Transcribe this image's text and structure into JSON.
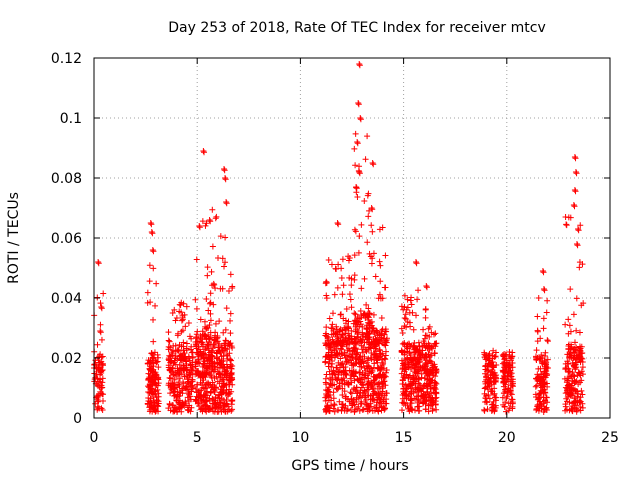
{
  "chart_data": {
    "type": "scatter",
    "title": "Day 253 of 2018, Rate Of TEC Index for receiver mtcv",
    "xlabel": "GPS time / hours",
    "ylabel": "ROTI / TECUs",
    "xlim": [
      0,
      25
    ],
    "ylim": [
      0,
      0.12
    ],
    "xticks": [
      "0",
      "5",
      "10",
      "15",
      "20",
      "25"
    ],
    "yticks": [
      "0",
      "0.02",
      "0.04",
      "0.06",
      "0.08",
      "0.1",
      "0.12"
    ],
    "grid": true,
    "marker": "plus",
    "color": "#ff0000",
    "clusters": [
      {
        "x_range": [
          0.0,
          0.45
        ],
        "y_base": 0.012,
        "y_max": 0.052,
        "count": 80
      },
      {
        "x_range": [
          2.6,
          3.15
        ],
        "y_base": 0.012,
        "y_max": 0.066,
        "count": 140
      },
      {
        "x_range": [
          3.6,
          4.8
        ],
        "y_base": 0.015,
        "y_max": 0.048,
        "count": 260
      },
      {
        "x_range": [
          4.9,
          6.0
        ],
        "y_base": 0.018,
        "y_max": 0.09,
        "count": 320
      },
      {
        "x_range": [
          6.0,
          6.7
        ],
        "y_base": 0.015,
        "y_max": 0.084,
        "count": 180
      },
      {
        "x_range": [
          11.2,
          12.6
        ],
        "y_base": 0.02,
        "y_max": 0.066,
        "count": 340
      },
      {
        "x_range": [
          12.6,
          13.4
        ],
        "y_base": 0.025,
        "y_max": 0.118,
        "count": 240
      },
      {
        "x_range": [
          13.4,
          14.2
        ],
        "y_base": 0.02,
        "y_max": 0.085,
        "count": 220
      },
      {
        "x_range": [
          14.9,
          16.0
        ],
        "y_base": 0.015,
        "y_max": 0.053,
        "count": 260
      },
      {
        "x_range": [
          16.0,
          16.6
        ],
        "y_base": 0.015,
        "y_max": 0.045,
        "count": 160
      },
      {
        "x_range": [
          18.9,
          19.5
        ],
        "y_base": 0.012,
        "y_max": 0.027,
        "count": 120
      },
      {
        "x_range": [
          19.8,
          20.3
        ],
        "y_base": 0.012,
        "y_max": 0.026,
        "count": 110
      },
      {
        "x_range": [
          21.4,
          22.0
        ],
        "y_base": 0.012,
        "y_max": 0.05,
        "count": 130
      },
      {
        "x_range": [
          22.8,
          23.7
        ],
        "y_base": 0.015,
        "y_max": 0.088,
        "count": 200
      }
    ],
    "highlights": [
      {
        "x": 0.2,
        "y": 0.052
      },
      {
        "x": 0.35,
        "y": 0.037
      },
      {
        "x": 0.3,
        "y": 0.029
      },
      {
        "x": 2.75,
        "y": 0.065
      },
      {
        "x": 2.8,
        "y": 0.062
      },
      {
        "x": 2.85,
        "y": 0.056
      },
      {
        "x": 5.3,
        "y": 0.089
      },
      {
        "x": 6.3,
        "y": 0.083
      },
      {
        "x": 6.35,
        "y": 0.08
      },
      {
        "x": 6.4,
        "y": 0.072
      },
      {
        "x": 5.1,
        "y": 0.064
      },
      {
        "x": 5.6,
        "y": 0.066
      },
      {
        "x": 12.85,
        "y": 0.118
      },
      {
        "x": 12.8,
        "y": 0.105
      },
      {
        "x": 12.9,
        "y": 0.1
      },
      {
        "x": 12.75,
        "y": 0.092
      },
      {
        "x": 12.85,
        "y": 0.082
      },
      {
        "x": 12.7,
        "y": 0.077
      },
      {
        "x": 13.5,
        "y": 0.085
      },
      {
        "x": 13.45,
        "y": 0.07
      },
      {
        "x": 11.8,
        "y": 0.065
      },
      {
        "x": 15.6,
        "y": 0.052
      },
      {
        "x": 16.1,
        "y": 0.044
      },
      {
        "x": 21.75,
        "y": 0.049
      },
      {
        "x": 21.8,
        "y": 0.043
      },
      {
        "x": 23.3,
        "y": 0.087
      },
      {
        "x": 23.35,
        "y": 0.082
      },
      {
        "x": 23.3,
        "y": 0.076
      },
      {
        "x": 23.25,
        "y": 0.071
      },
      {
        "x": 23.45,
        "y": 0.063
      },
      {
        "x": 23.4,
        "y": 0.058
      }
    ]
  }
}
